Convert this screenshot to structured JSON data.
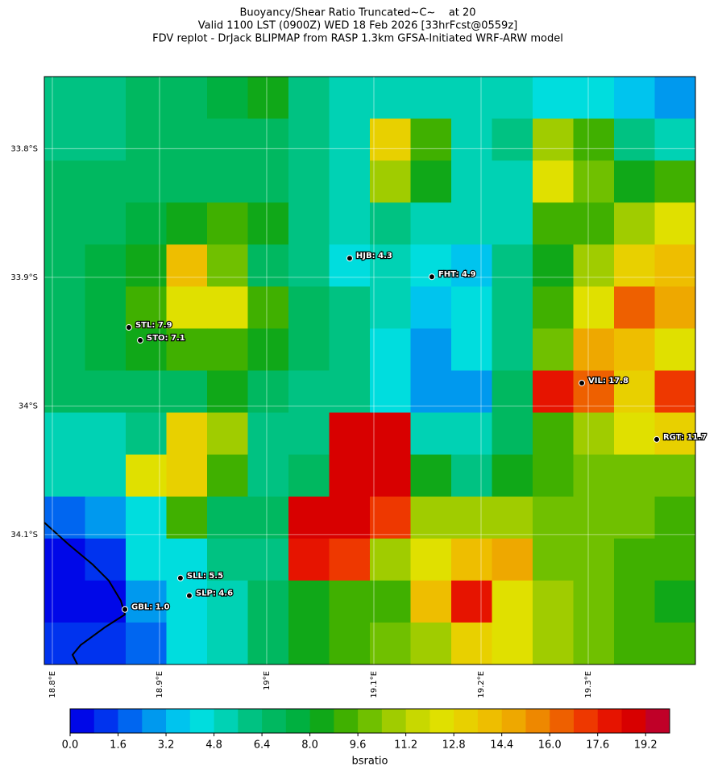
{
  "title": [
    "Buoyancy/Shear Ratio Truncated~C~    at 20",
    "Valid 1100 LST (0900Z) WED 18 Feb 2026 [33hrFcst@0559z]",
    "FDV replot - DrJack BLIPMAP from RASP 1.3km GFSA-Initiated WRF-ARW model"
  ],
  "map": {
    "xlim": [
      18.7925,
      19.4
    ],
    "ylim": [
      33.744,
      34.201
    ],
    "xticks": [
      {
        "value": 18.8,
        "label": "18.8°E"
      },
      {
        "value": 18.9,
        "label": "18.9°E"
      },
      {
        "value": 19.0,
        "label": "19°E"
      },
      {
        "value": 19.1,
        "label": "19.1°E"
      },
      {
        "value": 19.2,
        "label": "19.2°E"
      },
      {
        "value": 19.3,
        "label": "19.3°E"
      }
    ],
    "yticks": [
      {
        "value": 33.8,
        "label": "33.8°S"
      },
      {
        "value": 33.9,
        "label": "33.9°S"
      },
      {
        "value": 34.0,
        "label": "34°S"
      },
      {
        "value": 34.1,
        "label": "34.1°S"
      }
    ],
    "grid": {
      "values": [
        [
          6,
          6,
          6.5,
          7,
          7.5,
          8,
          6,
          5.5,
          5,
          5,
          5,
          5,
          4.5,
          4,
          3.5,
          3
        ],
        [
          6,
          6,
          6.5,
          7,
          7,
          6.5,
          6,
          5.5,
          13,
          9,
          5,
          6,
          11,
          9,
          6,
          5
        ],
        [
          6.5,
          6.5,
          6.5,
          7,
          7,
          7,
          6,
          5.5,
          11,
          8,
          5,
          5,
          12,
          10,
          8,
          9
        ],
        [
          6.5,
          7,
          7.5,
          8,
          9,
          8,
          6,
          5.5,
          6,
          5,
          5,
          5,
          9,
          9,
          11,
          12
        ],
        [
          7,
          7.5,
          8,
          14,
          10,
          7,
          6,
          4.5,
          5,
          4,
          3.5,
          6,
          8,
          11,
          13,
          14
        ],
        [
          7,
          7.5,
          9,
          12,
          12,
          9,
          7,
          6,
          5,
          3.5,
          4,
          6,
          9,
          12,
          16,
          15
        ],
        [
          7,
          7.5,
          8,
          9,
          9,
          8,
          7,
          6,
          4,
          3,
          4,
          6,
          10,
          15,
          14,
          12
        ],
        [
          7,
          7,
          6.5,
          7,
          8,
          7,
          6,
          6,
          4,
          3,
          3,
          7,
          18,
          16,
          13,
          17
        ],
        [
          5.5,
          5,
          6,
          13,
          11,
          6,
          6,
          19,
          19,
          5,
          5,
          7,
          9,
          11,
          12,
          13
        ],
        [
          5,
          5.5,
          12,
          13,
          9,
          6,
          7,
          19,
          19,
          8,
          6,
          8,
          9,
          10,
          10,
          10
        ],
        [
          2,
          3,
          4.5,
          9,
          7,
          7,
          19,
          19,
          17,
          11,
          11,
          11,
          10,
          10,
          10,
          9
        ],
        [
          0.5,
          1.5,
          4,
          4,
          6,
          6,
          18,
          17,
          11,
          12,
          14,
          15,
          10,
          10,
          9,
          9
        ],
        [
          0.5,
          0.5,
          3,
          4,
          5,
          7,
          8,
          9,
          9,
          14,
          18,
          12,
          11,
          10,
          9,
          8
        ],
        [
          1,
          1,
          2,
          4.5,
          5,
          7,
          8,
          9,
          10,
          11,
          13,
          12,
          11,
          10,
          9,
          9
        ]
      ]
    },
    "stations": [
      {
        "label": "HJB: 4.3",
        "lon": 19.0774,
        "lat": 33.8852
      },
      {
        "label": "FHT: 4.9",
        "lon": 19.1541,
        "lat": 33.8996
      },
      {
        "label": "STL: 7.9",
        "lon": 18.8714,
        "lat": 33.939
      },
      {
        "label": "STO: 7.1",
        "lon": 18.882,
        "lat": 33.949
      },
      {
        "label": "VIL: 17.8",
        "lon": 19.294,
        "lat": 33.9822
      },
      {
        "label": "RGT: 11.7",
        "lon": 19.3639,
        "lat": 34.026
      },
      {
        "label": "SLL: 5.5",
        "lon": 18.9195,
        "lat": 34.1338
      },
      {
        "label": "SLP: 4.6",
        "lon": 18.9278,
        "lat": 34.1475
      },
      {
        "label": "GBL: 1.0",
        "lon": 18.8677,
        "lat": 34.1582
      }
    ]
  },
  "colorbar": {
    "label": "bsratio",
    "min": 0,
    "max": 20,
    "colors": [
      "#0008e8",
      "#0033ee",
      "#0066f0",
      "#0099ee",
      "#00c4ee",
      "#00ddde",
      "#00d2b4",
      "#00c282",
      "#00b860",
      "#00b040",
      "#10a818",
      "#40b000",
      "#70c000",
      "#a0cc00",
      "#c8d800",
      "#e0e000",
      "#e8d000",
      "#eebe00",
      "#eea800",
      "#ee8800",
      "#ee6000",
      "#ee3800",
      "#e61400",
      "#d80000",
      "#c00028"
    ],
    "ticks": [
      {
        "value": 0,
        "label": "0.0"
      },
      {
        "value": 1.6,
        "label": "1.6"
      },
      {
        "value": 3.2,
        "label": "3.2"
      },
      {
        "value": 4.8,
        "label": "4.8"
      },
      {
        "value": 6.4,
        "label": "6.4"
      },
      {
        "value": 8.0,
        "label": "8.0"
      },
      {
        "value": 9.6,
        "label": "9.6"
      },
      {
        "value": 11.2,
        "label": "11.2"
      },
      {
        "value": 12.8,
        "label": "12.8"
      },
      {
        "value": 14.4,
        "label": "14.4"
      },
      {
        "value": 16.0,
        "label": "16.0"
      },
      {
        "value": 17.6,
        "label": "17.6"
      },
      {
        "value": 19.2,
        "label": "19.2"
      }
    ]
  }
}
